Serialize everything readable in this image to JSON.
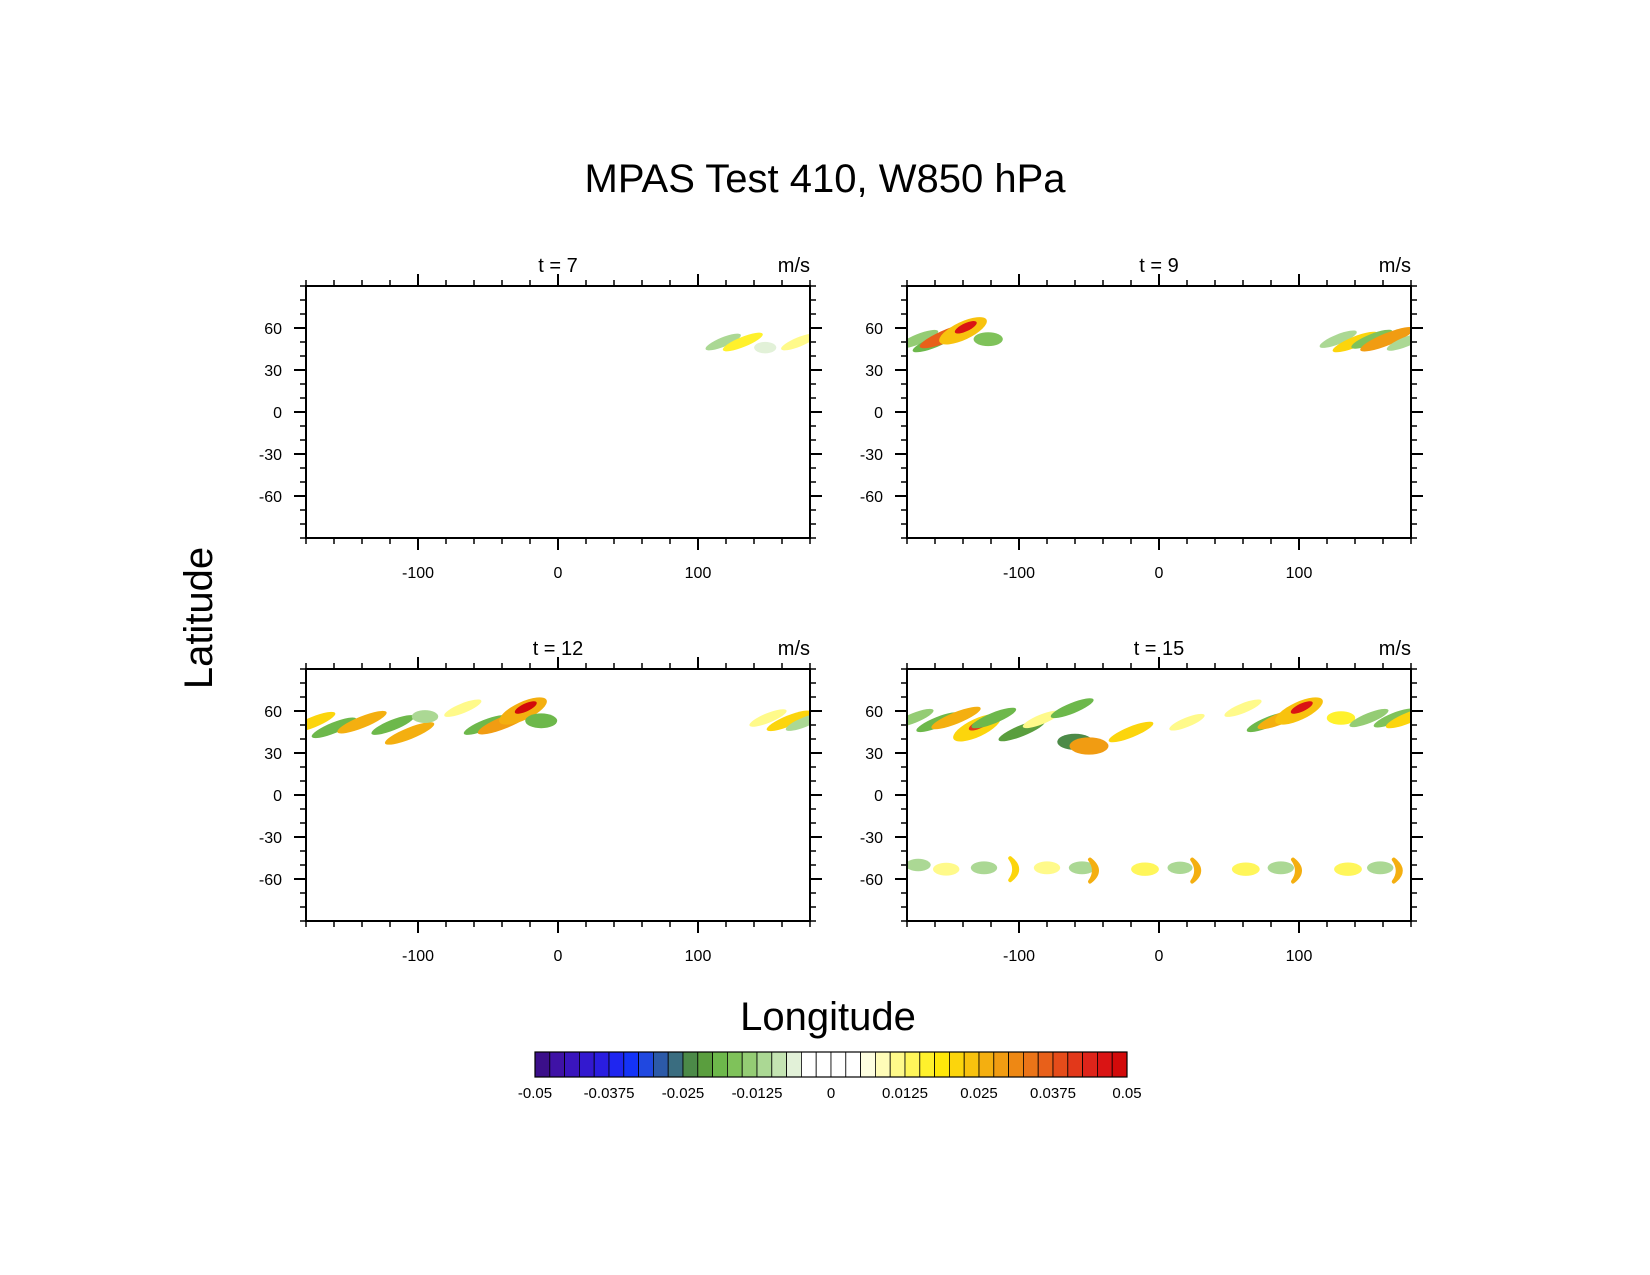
{
  "figure": {
    "title": "MPAS Test 410, W850 hPa",
    "ylabel": "Latitude",
    "xlabel": "Longitude"
  },
  "colorbar": {
    "tick_labels": [
      "-0.05",
      "-0.0375",
      "-0.025",
      "-0.0125",
      "0",
      "0.0125",
      "0.025",
      "0.0375",
      "0.05"
    ],
    "range": [
      -0.05,
      0.05
    ],
    "colors": [
      "#3b0f8a",
      "#3f12a6",
      "#3a15bd",
      "#3319cf",
      "#2a1de0",
      "#1f26f0",
      "#1433f7",
      "#2048e0",
      "#2c5aa8",
      "#3a6d80",
      "#4c8a48",
      "#5a9e3e",
      "#6db84b",
      "#7fc25a",
      "#94cc74",
      "#abd894",
      "#c4e4b2",
      "#e2f1d8",
      "#ffffff",
      "#ffffff",
      "#ffffff",
      "#ffffff",
      "#fefee0",
      "#fffcb8",
      "#fffa8a",
      "#fff65a",
      "#fff12c",
      "#ffe80a",
      "#fcd50c",
      "#f8c20e",
      "#f4af10",
      "#f19c12",
      "#ee8814",
      "#eb7418",
      "#e8601a",
      "#e54c1a",
      "#e2381a",
      "#de241a",
      "#da1414",
      "#d20a0a"
    ]
  },
  "chart_data": [
    {
      "type": "heatmap",
      "panel_label": "t = 7",
      "units": "m/s",
      "xlim": [
        -180,
        180
      ],
      "ylim": [
        -90,
        90
      ],
      "x_ticks": [
        -100,
        0,
        100
      ],
      "y_ticks": [
        60,
        30,
        0,
        -30,
        -60
      ],
      "grid": false,
      "features": [
        {
          "lon": 118,
          "lat": 50,
          "value": -0.01,
          "shape": "streak"
        },
        {
          "lon": 132,
          "lat": 50,
          "value": 0.015,
          "shape": "streak"
        },
        {
          "lon": 148,
          "lat": 46,
          "value": -0.006,
          "shape": "blob"
        },
        {
          "lon": 172,
          "lat": 50,
          "value": 0.01,
          "shape": "streak"
        }
      ]
    },
    {
      "type": "heatmap",
      "panel_label": "t = 9",
      "units": "m/s",
      "xlim": [
        -180,
        180
      ],
      "ylim": [
        -90,
        90
      ],
      "x_ticks": [
        -100,
        0,
        100
      ],
      "y_ticks": [
        60,
        30,
        0,
        -30,
        -60
      ],
      "grid": false,
      "features": [
        {
          "lon": -172,
          "lat": 52,
          "value": -0.015,
          "shape": "streak"
        },
        {
          "lon": -160,
          "lat": 50,
          "value": -0.02,
          "shape": "streak"
        },
        {
          "lon": -150,
          "lat": 55,
          "value": 0.035,
          "shape": "streak"
        },
        {
          "lon": -140,
          "lat": 58,
          "value": 0.045,
          "shape": "core"
        },
        {
          "lon": -122,
          "lat": 52,
          "value": -0.016,
          "shape": "blob"
        },
        {
          "lon": 128,
          "lat": 52,
          "value": -0.012,
          "shape": "streak"
        },
        {
          "lon": 140,
          "lat": 50,
          "value": 0.02,
          "shape": "streak"
        },
        {
          "lon": 152,
          "lat": 52,
          "value": -0.016,
          "shape": "streak"
        },
        {
          "lon": 163,
          "lat": 52,
          "value": 0.03,
          "shape": "streak"
        },
        {
          "lon": 176,
          "lat": 50,
          "value": -0.012,
          "shape": "streak"
        }
      ]
    },
    {
      "type": "heatmap",
      "panel_label": "t = 12",
      "units": "m/s",
      "xlim": [
        -180,
        180
      ],
      "ylim": [
        -90,
        90
      ],
      "x_ticks": [
        -100,
        0,
        100
      ],
      "y_ticks": [
        60,
        30,
        0,
        -30,
        -60
      ],
      "grid": false,
      "features": [
        {
          "lon": -175,
          "lat": 52,
          "value": 0.02,
          "shape": "streak"
        },
        {
          "lon": -160,
          "lat": 48,
          "value": -0.02,
          "shape": "streak"
        },
        {
          "lon": -140,
          "lat": 52,
          "value": 0.025,
          "shape": "streak"
        },
        {
          "lon": -118,
          "lat": 50,
          "value": -0.018,
          "shape": "streak"
        },
        {
          "lon": -106,
          "lat": 44,
          "value": 0.025,
          "shape": "streak"
        },
        {
          "lon": -95,
          "lat": 56,
          "value": -0.012,
          "shape": "blob"
        },
        {
          "lon": -68,
          "lat": 62,
          "value": 0.012,
          "shape": "streak"
        },
        {
          "lon": -52,
          "lat": 50,
          "value": -0.018,
          "shape": "streak"
        },
        {
          "lon": -38,
          "lat": 52,
          "value": 0.03,
          "shape": "streak"
        },
        {
          "lon": -25,
          "lat": 60,
          "value": 0.048,
          "shape": "core"
        },
        {
          "lon": -12,
          "lat": 53,
          "value": -0.02,
          "shape": "blob"
        },
        {
          "lon": 150,
          "lat": 55,
          "value": 0.012,
          "shape": "streak"
        },
        {
          "lon": 165,
          "lat": 53,
          "value": 0.02,
          "shape": "streak"
        },
        {
          "lon": 176,
          "lat": 52,
          "value": -0.012,
          "shape": "streak"
        }
      ]
    },
    {
      "type": "heatmap",
      "panel_label": "t = 15",
      "units": "m/s",
      "xlim": [
        -180,
        180
      ],
      "ylim": [
        -90,
        90
      ],
      "x_ticks": [
        -100,
        0,
        100
      ],
      "y_ticks": [
        60,
        30,
        0,
        -30,
        -60
      ],
      "grid": false,
      "features": [
        {
          "lon": -175,
          "lat": 55,
          "value": -0.014,
          "shape": "streak"
        },
        {
          "lon": -158,
          "lat": 52,
          "value": -0.018,
          "shape": "streak"
        },
        {
          "lon": -145,
          "lat": 55,
          "value": 0.025,
          "shape": "streak"
        },
        {
          "lon": -130,
          "lat": 48,
          "value": 0.04,
          "shape": "core"
        },
        {
          "lon": -118,
          "lat": 55,
          "value": -0.02,
          "shape": "streak"
        },
        {
          "lon": -98,
          "lat": 46,
          "value": -0.022,
          "shape": "streak"
        },
        {
          "lon": -84,
          "lat": 54,
          "value": 0.012,
          "shape": "streak"
        },
        {
          "lon": -62,
          "lat": 62,
          "value": -0.018,
          "shape": "streak"
        },
        {
          "lon": -60,
          "lat": 38,
          "value": -0.025,
          "shape": "blob"
        },
        {
          "lon": -50,
          "lat": 35,
          "value": 0.03,
          "shape": "blob"
        },
        {
          "lon": -20,
          "lat": 45,
          "value": 0.02,
          "shape": "streak"
        },
        {
          "lon": 20,
          "lat": 52,
          "value": 0.01,
          "shape": "streak"
        },
        {
          "lon": 60,
          "lat": 62,
          "value": 0.012,
          "shape": "streak"
        },
        {
          "lon": 78,
          "lat": 52,
          "value": -0.018,
          "shape": "streak"
        },
        {
          "lon": 88,
          "lat": 55,
          "value": 0.025,
          "shape": "streak"
        },
        {
          "lon": 100,
          "lat": 60,
          "value": 0.045,
          "shape": "core"
        },
        {
          "lon": 130,
          "lat": 55,
          "value": 0.015,
          "shape": "blob"
        },
        {
          "lon": 150,
          "lat": 55,
          "value": -0.014,
          "shape": "streak"
        },
        {
          "lon": 168,
          "lat": 55,
          "value": -0.016,
          "shape": "streak"
        },
        {
          "lon": 178,
          "lat": 55,
          "value": 0.02,
          "shape": "streak"
        },
        {
          "lon": -172,
          "lat": -50,
          "value": -0.01,
          "shape": "blob"
        },
        {
          "lon": -152,
          "lat": -53,
          "value": 0.012,
          "shape": "blob"
        },
        {
          "lon": -125,
          "lat": -52,
          "value": -0.012,
          "shape": "blob"
        },
        {
          "lon": -102,
          "lat": -53,
          "value": 0.02,
          "shape": "chevron"
        },
        {
          "lon": -80,
          "lat": -52,
          "value": 0.012,
          "shape": "blob"
        },
        {
          "lon": -55,
          "lat": -52,
          "value": -0.012,
          "shape": "blob"
        },
        {
          "lon": -45,
          "lat": -54,
          "value": 0.025,
          "shape": "chevron"
        },
        {
          "lon": -10,
          "lat": -53,
          "value": 0.014,
          "shape": "blob"
        },
        {
          "lon": 15,
          "lat": -52,
          "value": -0.01,
          "shape": "blob"
        },
        {
          "lon": 28,
          "lat": -54,
          "value": 0.025,
          "shape": "chevron"
        },
        {
          "lon": 62,
          "lat": -53,
          "value": 0.014,
          "shape": "blob"
        },
        {
          "lon": 87,
          "lat": -52,
          "value": -0.012,
          "shape": "blob"
        },
        {
          "lon": 100,
          "lat": -54,
          "value": 0.025,
          "shape": "chevron"
        },
        {
          "lon": 135,
          "lat": -53,
          "value": 0.014,
          "shape": "blob"
        },
        {
          "lon": 158,
          "lat": -52,
          "value": -0.012,
          "shape": "blob"
        },
        {
          "lon": 172,
          "lat": -54,
          "value": 0.025,
          "shape": "chevron"
        }
      ]
    }
  ]
}
